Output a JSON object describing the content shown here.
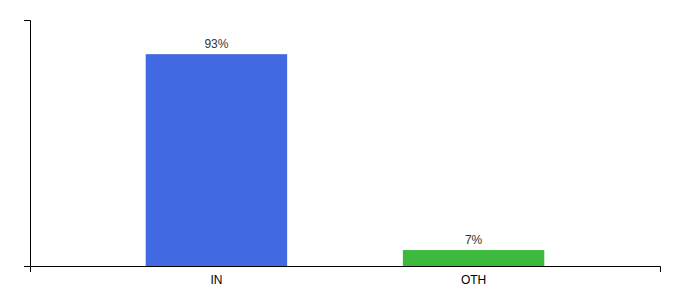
{
  "chart_data": {
    "type": "bar",
    "categories": [
      "IN",
      "OTH"
    ],
    "values": [
      93,
      7
    ],
    "value_labels": [
      "93%",
      "7%"
    ],
    "colors": [
      "#4169e1",
      "#3dba3d"
    ],
    "ylim": [
      0,
      108
    ],
    "data_labels": true,
    "tick_labels": "x",
    "grid": false
  }
}
